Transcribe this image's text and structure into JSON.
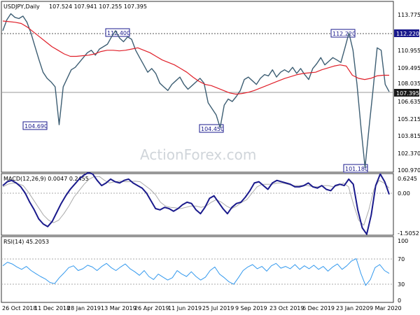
{
  "main": {
    "title": "USDJPY,Daily",
    "ohlc": "107.524 107.941 107.255 107.395",
    "watermark": "ActionForex.com",
    "y_ticks": [
      "113.775",
      "112.220",
      "110.955",
      "109.495",
      "108.035",
      "107.395",
      "106.635",
      "105.215",
      "103.815",
      "102.370",
      "100.970"
    ],
    "current_price": "107.395",
    "resistance_price": "112.220",
    "annotations": [
      "112.400",
      "112.220",
      "104.690",
      "104.450",
      "101.180"
    ]
  },
  "macd": {
    "title": "MACD(12,26,9) 0.0047 0.2455",
    "y_ticks": [
      "0.6245",
      "0.00",
      "-1.5052"
    ]
  },
  "rsi": {
    "title": "RSI(14) 45.2053",
    "y_ticks": [
      "100",
      "70",
      "30",
      "0"
    ]
  },
  "x_axis": {
    "labels": [
      "26 Oct 2018",
      "11 Dec 2018",
      "28 Jan 2019",
      "13 Mar 2019",
      "26 Apr 2019",
      "11 Jun 2019",
      "25 Jul 2019",
      "9 Sep 2019",
      "23 Oct 2019",
      "6 Dec 2019",
      "23 Jan 2020",
      "9 Mar 2020"
    ]
  },
  "colors": {
    "candle": "#3d5e73",
    "ma": "#e0202a",
    "macd_line": "#1a1a8c",
    "macd_signal": "#aaaaaa",
    "rsi_line": "#3399ee",
    "annotation": "#1a1a8c",
    "grid": "#b0b0b0"
  },
  "chart_data": [
    {
      "type": "line",
      "series": [
        {
          "values": [
            112.4,
            113.3,
            113.8,
            113.5,
            113.4,
            113.6,
            113.1,
            112.2,
            111.1,
            110.0,
            109.0,
            108.5,
            108.2,
            107.8,
            104.69,
            107.8,
            108.5,
            109.2,
            109.4,
            109.8,
            110.2,
            110.6,
            110.8,
            110.4,
            110.9,
            111.1,
            111.3,
            111.9,
            112.4,
            111.8,
            111.5,
            111.9,
            111.7,
            110.8,
            110.2,
            109.6,
            109.0,
            109.3,
            108.9,
            108.1,
            107.8,
            107.5,
            108.0,
            108.3,
            108.6,
            108.0,
            107.6,
            107.9,
            108.2,
            108.5,
            108.1,
            106.5,
            106.0,
            105.5,
            104.45,
            106.3,
            106.8,
            106.6,
            107.0,
            107.5,
            108.4,
            108.6,
            108.3,
            108.0,
            108.5,
            108.8,
            108.7,
            109.2,
            108.6,
            109.0,
            109.2,
            109.0,
            109.4,
            108.9,
            109.3,
            108.8,
            108.4,
            109.3,
            109.7,
            110.2,
            109.6,
            109.9,
            110.2,
            110.0,
            109.8,
            111.0,
            112.22,
            110.8,
            108.0,
            104.4,
            101.18,
            104.5,
            107.6,
            111.0,
            110.8,
            108.0,
            107.395
          ]
        },
        {
          "values": [
            113.2,
            113.15,
            113.1,
            113.0,
            112.7,
            112.3,
            111.9,
            111.5,
            111.1,
            110.8,
            110.5,
            110.3,
            110.3,
            110.35,
            110.4,
            110.5,
            110.7,
            110.8,
            110.8,
            110.75,
            110.8,
            110.9,
            111.0,
            110.8,
            110.6,
            110.3,
            110.0,
            109.8,
            109.6,
            109.3,
            109.0,
            108.6,
            108.25,
            108.0,
            107.9,
            107.7,
            107.5,
            107.3,
            107.2,
            107.25,
            107.35,
            107.5,
            107.7,
            107.9,
            108.1,
            108.3,
            108.5,
            108.65,
            108.8,
            108.9,
            108.95,
            109.0,
            109.2,
            109.35,
            109.5,
            109.6,
            109.5,
            108.75,
            108.5,
            108.4,
            108.5,
            108.7,
            108.75,
            108.75
          ]
        }
      ],
      "title": "USDJPY,Daily",
      "annotations": [
        "112.400",
        "112.220",
        "104.690",
        "104.450",
        "101.180"
      ]
    },
    {
      "type": "line",
      "title": "MACD(12,26,9) 0.0047 0.2455",
      "series": [
        {
          "values": [
            0.35,
            0.5,
            0.55,
            0.45,
            0.3,
            0.05,
            -0.3,
            -0.6,
            -0.95,
            -1.15,
            -1.25,
            -1.05,
            -0.7,
            -0.35,
            -0.05,
            0.2,
            0.4,
            0.6,
            0.75,
            0.85,
            0.8,
            0.55,
            0.35,
            0.45,
            0.6,
            0.5,
            0.45,
            0.55,
            0.6,
            0.45,
            0.35,
            0.25,
            0.05,
            -0.25,
            -0.55,
            -0.6,
            -0.5,
            -0.55,
            -0.65,
            -0.55,
            -0.4,
            -0.3,
            -0.35,
            -0.6,
            -0.75,
            -0.5,
            -0.15,
            -0.05,
            -0.3,
            -0.55,
            -0.75,
            -0.5,
            -0.35,
            -0.3,
            -0.1,
            0.15,
            0.45,
            0.5,
            0.35,
            0.2,
            0.45,
            0.55,
            0.5,
            0.45,
            0.4,
            0.3,
            0.3,
            0.35,
            0.45,
            0.3,
            0.25,
            0.35,
            0.2,
            0.15,
            0.35,
            0.4,
            0.35,
            0.6,
            0.4,
            -0.6,
            -1.3,
            -1.55,
            -0.8,
            0.35,
            0.8,
            0.5,
            0.0047
          ]
        },
        {
          "values": [
            0.3,
            0.4,
            0.45,
            0.42,
            0.35,
            0.1,
            -0.2,
            -0.5,
            -0.8,
            -1.0,
            -1.1,
            -1.0,
            -0.75,
            -0.45,
            -0.1,
            0.15,
            0.4,
            0.6,
            0.7,
            0.7,
            0.55,
            0.45,
            0.5,
            0.52,
            0.5,
            0.5,
            0.52,
            0.5,
            0.35,
            0.2,
            0.0,
            -0.3,
            -0.45,
            -0.5,
            -0.52,
            -0.55,
            -0.5,
            -0.45,
            -0.45,
            -0.5,
            -0.45,
            -0.3,
            -0.2,
            -0.3,
            -0.45,
            -0.55,
            -0.45,
            -0.3,
            -0.2,
            0.05,
            0.3,
            0.4,
            0.4,
            0.4,
            0.45,
            0.45,
            0.4,
            0.35,
            0.35,
            0.35,
            0.35,
            0.3,
            0.3,
            0.35,
            0.35,
            0.3,
            0.35,
            0.45,
            0.3,
            -0.4,
            -1.0,
            -1.2,
            -0.6,
            0.2,
            0.55,
            0.45,
            0.2455
          ]
        }
      ],
      "y_ticks": [
        0.6245,
        0.0,
        -1.5052
      ]
    },
    {
      "type": "line",
      "title": "RSI(14) 45.2053",
      "series": [
        {
          "values": [
            58,
            64,
            61,
            56,
            52,
            57,
            50,
            45,
            40,
            36,
            30,
            28,
            38,
            46,
            55,
            58,
            50,
            53,
            59,
            56,
            50,
            57,
            62,
            55,
            50,
            56,
            61,
            53,
            48,
            42,
            50,
            40,
            35,
            44,
            39,
            34,
            38,
            50,
            44,
            40,
            48,
            40,
            34,
            39,
            50,
            56,
            44,
            38,
            31,
            27,
            38,
            50,
            56,
            60,
            53,
            57,
            49,
            58,
            62,
            54,
            57,
            53,
            60,
            52,
            58,
            53,
            59,
            52,
            57,
            49,
            56,
            61,
            52,
            58,
            66,
            70,
            45,
            25,
            35,
            55,
            60,
            50,
            45.2053
          ]
        }
      ],
      "y_ticks": [
        100,
        70,
        30,
        0
      ]
    }
  ]
}
